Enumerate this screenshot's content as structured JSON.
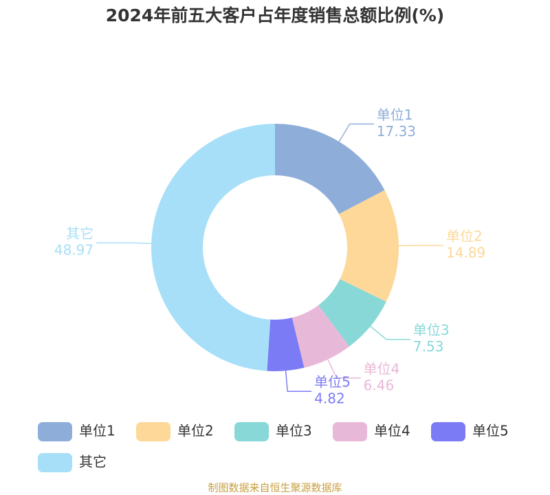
{
  "chart_data": {
    "type": "donut",
    "title": "2024年前五大客户占年度销售总额比例(%)",
    "categories": [
      "单位1",
      "单位2",
      "单位3",
      "单位4",
      "单位5",
      "其它"
    ],
    "values": [
      17.33,
      14.89,
      7.53,
      6.46,
      4.82,
      48.97
    ],
    "colors": [
      "#8eaed9",
      "#fdd899",
      "#88d8d8",
      "#e8b8d8",
      "#7b7bf5",
      "#a7dff8"
    ],
    "source": "制图数据来自恒生聚源数据库"
  }
}
